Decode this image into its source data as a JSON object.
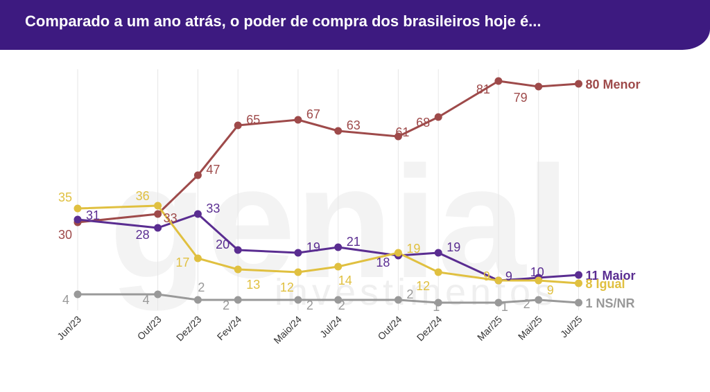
{
  "header": {
    "title": "Comparado a um ano atrás, o poder de compra dos brasileiros hoje é..."
  },
  "watermark": "genial investimentos",
  "chart_data": {
    "type": "line",
    "categories": [
      "Jun/23",
      "Out/23",
      "Dez/23",
      "Fev/24",
      "Maio/24",
      "Jul/24",
      "Out/24",
      "Dez/24",
      "Mar/25",
      "Mai/25",
      "Jul/25"
    ],
    "x_positions": [
      0,
      4,
      6,
      8,
      11,
      13,
      16,
      18,
      21,
      23,
      25
    ],
    "ylim": [
      0,
      90
    ],
    "grid": "vertical",
    "series": [
      {
        "name": "Menor",
        "end_label": "80 Menor",
        "color": "#9e4a4a",
        "values": [
          30,
          33,
          47,
          65,
          67,
          63,
          61,
          68,
          81,
          79,
          80
        ]
      },
      {
        "name": "Maior",
        "end_label": "11 Maior",
        "color": "#5a2d91",
        "values": [
          31,
          28,
          33,
          20,
          19,
          21,
          18,
          19,
          9,
          10,
          11
        ]
      },
      {
        "name": "Igual",
        "end_label": "8 Igual",
        "color": "#e0c040",
        "values": [
          35,
          36,
          17,
          13,
          12,
          14,
          19,
          12,
          9,
          9,
          8
        ]
      },
      {
        "name": "NS/NR",
        "end_label": "1 NS/NR",
        "color": "#999999",
        "values": [
          4,
          4,
          2,
          2,
          2,
          2,
          2,
          1,
          1,
          2,
          1
        ]
      }
    ]
  }
}
